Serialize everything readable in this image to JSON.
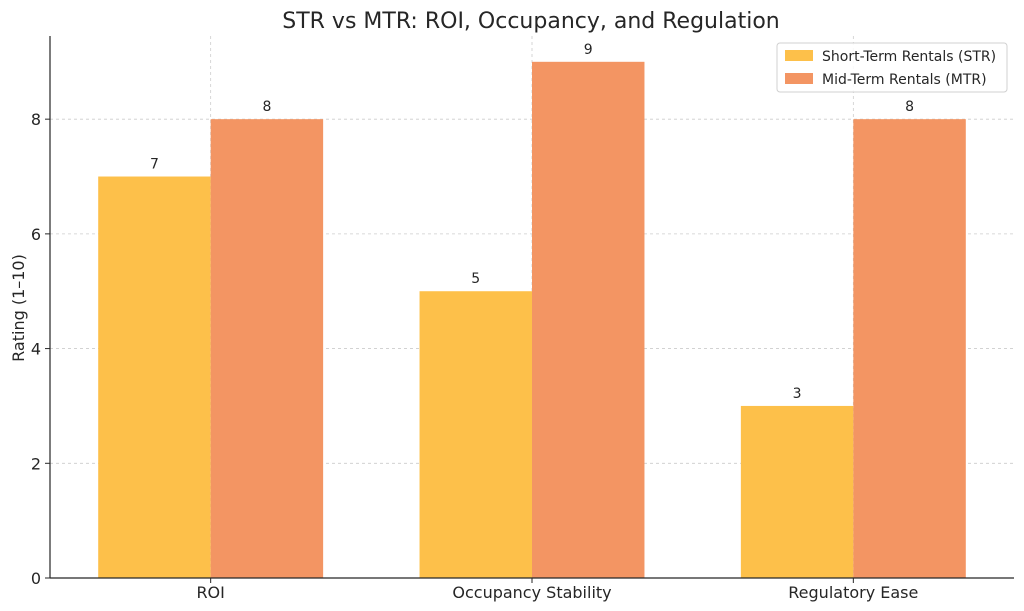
{
  "chart_data": {
    "type": "bar",
    "title": "STR vs MTR: ROI, Occupancy, and Regulation",
    "xlabel": "",
    "ylabel": "Rating (1–10)",
    "categories": [
      "ROI",
      "Occupancy Stability",
      "Regulatory Ease"
    ],
    "series": [
      {
        "name": "Short-Term Rentals (STR)",
        "color": "#fdc04a",
        "values": [
          7,
          5,
          3
        ]
      },
      {
        "name": "Mid-Term Rentals (MTR)",
        "color": "#f39563",
        "values": [
          8,
          9,
          8
        ]
      }
    ],
    "ylim": [
      0,
      9.45
    ],
    "yticks": [
      0,
      2,
      4,
      6,
      8
    ],
    "grid": true,
    "legend_position": "top-right"
  }
}
